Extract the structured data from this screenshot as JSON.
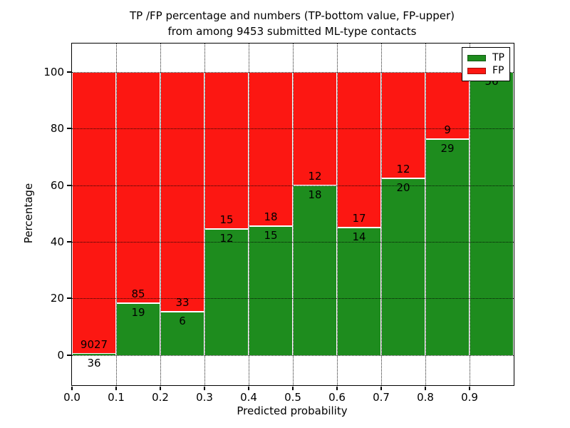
{
  "figure": {
    "title_line1": "TP /FP percentage and numbers (TP-bottom value, FP-upper)",
    "title_line2": "from among 9453 submitted ML-type contacts",
    "xlabel": "Predicted probability",
    "ylabel": "Percentage"
  },
  "legend": {
    "items": [
      {
        "label": "TP",
        "color": "#1e8c1e"
      },
      {
        "label": "FP",
        "color": "#fc1712"
      }
    ]
  },
  "colors": {
    "tp": "#1e8c1e",
    "fp": "#fc1712",
    "grid": "#000000",
    "frame": "#000000",
    "bar_edge": "#ffffff",
    "background": "#ffffff"
  },
  "chart_data": {
    "type": "bar",
    "stacked": true,
    "normalized": "percent",
    "title": "TP /FP percentage and numbers (TP-bottom value, FP-upper) from among 9453 submitted ML-type contacts",
    "xlabel": "Predicted probability",
    "ylabel": "Percentage",
    "legend_position": "upper right",
    "grid": true,
    "total_submitted": 9453,
    "xlim": [
      0.0,
      1.0
    ],
    "ylim": [
      -10.6,
      110
    ],
    "x_tick_labels": [
      "0.0",
      "0.1",
      "0.2",
      "0.3",
      "0.4",
      "0.5",
      "0.6",
      "0.7",
      "0.8",
      "0.9"
    ],
    "y_ticks": [
      0,
      20,
      40,
      60,
      80,
      100
    ],
    "y_tick_labels": [
      "0",
      "20",
      "40",
      "60",
      "80",
      "100"
    ],
    "bins": [
      {
        "range": [
          0.0,
          0.1
        ],
        "tp": 36,
        "fp": 9027,
        "tp_pct": 0.4
      },
      {
        "range": [
          0.1,
          0.2
        ],
        "tp": 19,
        "fp": 85,
        "tp_pct": 18.3
      },
      {
        "range": [
          0.2,
          0.3
        ],
        "tp": 6,
        "fp": 33,
        "tp_pct": 15.4
      },
      {
        "range": [
          0.3,
          0.4
        ],
        "tp": 12,
        "fp": 15,
        "tp_pct": 44.4
      },
      {
        "range": [
          0.4,
          0.5
        ],
        "tp": 15,
        "fp": 18,
        "tp_pct": 45.5
      },
      {
        "range": [
          0.5,
          0.6
        ],
        "tp": 18,
        "fp": 12,
        "tp_pct": 60.0
      },
      {
        "range": [
          0.6,
          0.7
        ],
        "tp": 14,
        "fp": 17,
        "tp_pct": 45.2
      },
      {
        "range": [
          0.7,
          0.8
        ],
        "tp": 20,
        "fp": 12,
        "tp_pct": 62.5
      },
      {
        "range": [
          0.8,
          0.9
        ],
        "tp": 29,
        "fp": 9,
        "tp_pct": 76.3
      },
      {
        "range": [
          0.9,
          1.0
        ],
        "tp": 56,
        "fp": 0,
        "tp_pct": 100.0
      }
    ]
  }
}
